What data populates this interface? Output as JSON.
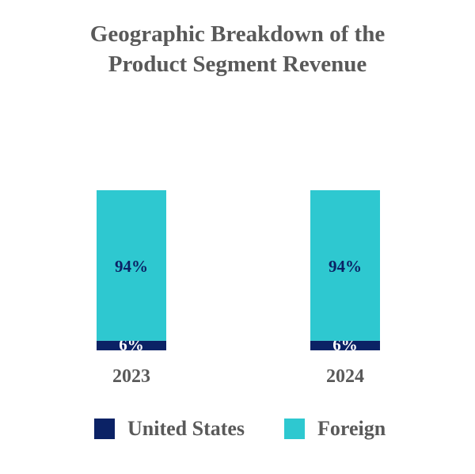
{
  "chart_data": {
    "type": "bar",
    "stacked": true,
    "percent": true,
    "title": "Geographic Breakdown of the Product Segment Revenue",
    "title_lines": [
      "Geographic Breakdown of the",
      "Product Segment Revenue"
    ],
    "categories": [
      "2023",
      "2024"
    ],
    "series": [
      {
        "name": "United States",
        "values": [
          6,
          6
        ],
        "labels": [
          "6%",
          "6%"
        ],
        "color": "#0b2265",
        "label_color": "#ffffff"
      },
      {
        "name": "Foreign",
        "values": [
          94,
          94
        ],
        "labels": [
          "94%",
          "94%"
        ],
        "color": "#2ec8d0",
        "label_color": "#0b2265"
      }
    ],
    "xlabel": "",
    "ylabel": "",
    "ylim": [
      0,
      100
    ],
    "grid": false,
    "legend": "bottom"
  }
}
